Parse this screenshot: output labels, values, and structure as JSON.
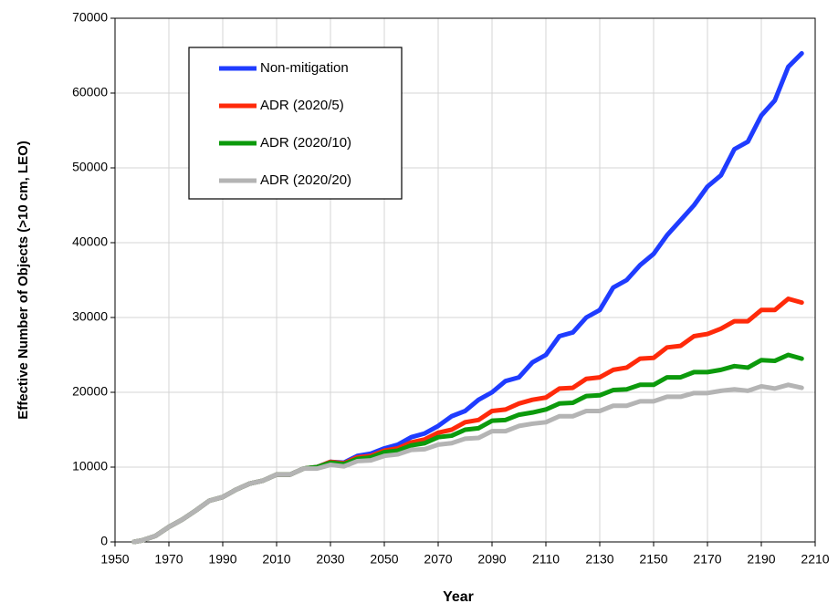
{
  "chart_data": {
    "type": "line",
    "xlabel": "Year",
    "ylabel": "Effective Number of Objects (>10 cm, LEO)",
    "x": [
      1957,
      1960,
      1965,
      1970,
      1975,
      1980,
      1985,
      1990,
      1995,
      2000,
      2005,
      2010,
      2015,
      2020,
      2025,
      2030,
      2035,
      2040,
      2045,
      2050,
      2055,
      2060,
      2065,
      2070,
      2075,
      2080,
      2085,
      2090,
      2095,
      2100,
      2105,
      2110,
      2115,
      2120,
      2125,
      2130,
      2135,
      2140,
      2145,
      2150,
      2155,
      2160,
      2165,
      2170,
      2175,
      2180,
      2185,
      2190,
      2195,
      2200,
      2205
    ],
    "series": [
      {
        "name": "Non-mitigation",
        "color": "#1f3cff",
        "values": [
          0,
          200,
          800,
          2000,
          3000,
          4200,
          5500,
          6000,
          7000,
          7800,
          8200,
          9000,
          9000,
          9800,
          10000,
          10700,
          10600,
          11500,
          11800,
          12500,
          13000,
          14000,
          14500,
          15500,
          16800,
          17500,
          19000,
          20000,
          21500,
          22000,
          24000,
          25000,
          27500,
          28000,
          30000,
          31000,
          34000,
          35000,
          37000,
          38500,
          41000,
          43000,
          45000,
          47500,
          49000,
          52500,
          53500,
          57000,
          59000,
          63500,
          65300
        ]
      },
      {
        "name": "ADR (2020/5)",
        "color": "#ff2a0a",
        "values": [
          0,
          200,
          800,
          2000,
          3000,
          4200,
          5500,
          6000,
          7000,
          7800,
          8200,
          9000,
          9000,
          9800,
          10000,
          10700,
          10500,
          11300,
          11500,
          12200,
          12500,
          13300,
          13700,
          14600,
          15000,
          16000,
          16300,
          17500,
          17700,
          18500,
          19000,
          19300,
          20500,
          20600,
          21800,
          22000,
          23000,
          23300,
          24500,
          24600,
          26000,
          26200,
          27500,
          27800,
          28500,
          29500,
          29500,
          31000,
          31000,
          32500,
          32000
        ]
      },
      {
        "name": "ADR (2020/10)",
        "color": "#0c9a0c",
        "values": [
          0,
          200,
          800,
          2000,
          3000,
          4200,
          5500,
          6000,
          7000,
          7800,
          8200,
          9000,
          9000,
          9800,
          10000,
          10600,
          10400,
          11100,
          11300,
          12000,
          12200,
          12900,
          13200,
          14000,
          14200,
          15000,
          15200,
          16200,
          16300,
          17000,
          17300,
          17700,
          18500,
          18600,
          19500,
          19600,
          20300,
          20400,
          21000,
          21000,
          22000,
          22000,
          22700,
          22700,
          23000,
          23500,
          23300,
          24300,
          24200,
          25000,
          24500
        ]
      },
      {
        "name": "ADR (2020/20)",
        "color": "#b4b4b4",
        "values": [
          0,
          200,
          800,
          2000,
          3000,
          4200,
          5500,
          6000,
          7000,
          7800,
          8200,
          9000,
          9000,
          9800,
          9800,
          10300,
          10100,
          10800,
          10900,
          11500,
          11700,
          12300,
          12400,
          13000,
          13200,
          13800,
          13900,
          14800,
          14800,
          15500,
          15800,
          16000,
          16800,
          16800,
          17500,
          17500,
          18200,
          18200,
          18800,
          18800,
          19400,
          19400,
          19900,
          19900,
          20200,
          20400,
          20200,
          20800,
          20500,
          21000,
          20600
        ]
      }
    ],
    "xlim": [
      1950,
      2210
    ],
    "xticks": [
      1950,
      1970,
      1990,
      2010,
      2030,
      2050,
      2070,
      2090,
      2110,
      2130,
      2150,
      2170,
      2190,
      2210
    ],
    "ylim": [
      0,
      70000
    ],
    "yticks": [
      0,
      10000,
      20000,
      30000,
      40000,
      50000,
      60000,
      70000
    ],
    "grid": true,
    "legend": "upper left"
  }
}
